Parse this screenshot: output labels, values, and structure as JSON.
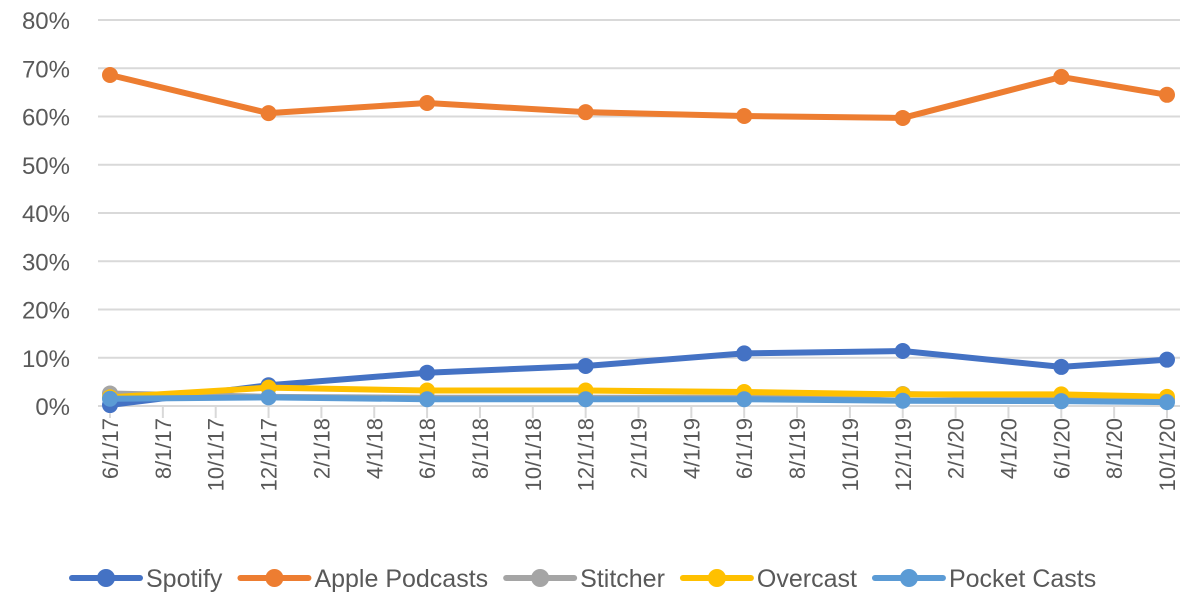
{
  "chart_data": {
    "type": "line",
    "title": "",
    "xlabel": "",
    "ylabel": "",
    "ylim": [
      0,
      80
    ],
    "yticks": [
      "0%",
      "10%",
      "20%",
      "30%",
      "40%",
      "50%",
      "60%",
      "70%",
      "80%"
    ],
    "grid": true,
    "legend_position": "bottom",
    "x_tick_labels": [
      "6/1/17",
      "8/1/17",
      "10/1/17",
      "12/1/17",
      "2/1/18",
      "4/1/18",
      "6/1/18",
      "8/1/18",
      "10/1/18",
      "12/1/18",
      "2/1/19",
      "4/1/19",
      "6/1/19",
      "8/1/19",
      "10/1/19",
      "12/1/19",
      "2/1/20",
      "4/1/20",
      "6/1/20",
      "8/1/20",
      "10/1/20"
    ],
    "x": [
      "6/1/17",
      "12/1/17",
      "6/1/18",
      "12/1/18",
      "6/1/19",
      "12/1/19",
      "6/1/20",
      "10/1/20"
    ],
    "series": [
      {
        "name": "Spotify",
        "color": "#4472C4",
        "values": [
          0.2,
          4.3,
          6.9,
          8.3,
          10.9,
          11.4,
          8.1,
          9.6
        ]
      },
      {
        "name": "Apple Podcasts",
        "color": "#ED7D31",
        "values": [
          68.6,
          60.7,
          62.8,
          60.9,
          60.1,
          59.7,
          68.2,
          64.5
        ]
      },
      {
        "name": "Stitcher",
        "color": "#A5A5A5",
        "values": [
          2.6,
          1.9,
          1.7,
          1.7,
          1.7,
          2.5,
          1.8,
          1.5
        ]
      },
      {
        "name": "Overcast",
        "color": "#FFC000",
        "values": [
          1.8,
          3.8,
          3.2,
          3.2,
          2.9,
          2.4,
          2.4,
          1.9
        ]
      },
      {
        "name": "Pocket Casts",
        "color": "#5B9BD5",
        "values": [
          1.5,
          1.8,
          1.4,
          1.4,
          1.4,
          1.1,
          1.0,
          0.8
        ]
      }
    ]
  }
}
